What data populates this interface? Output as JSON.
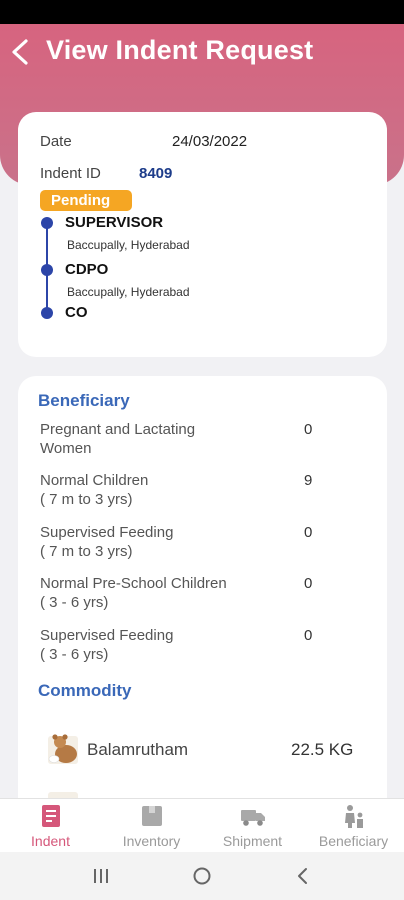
{
  "header": {
    "title": "View Indent Request"
  },
  "summary": {
    "date_label": "Date",
    "date_value": "24/03/2022",
    "indent_label": "Indent ID",
    "indent_value": "8409",
    "status": "Pending"
  },
  "timeline": [
    {
      "title": "SUPERVISOR",
      "location": "Baccupally, Hyderabad"
    },
    {
      "title": "CDPO",
      "location": "Baccupally, Hyderabad"
    },
    {
      "title": "CO",
      "location": ""
    }
  ],
  "beneficiary": {
    "title": "Beneficiary",
    "rows": [
      {
        "line1": "Pregnant and Lactating",
        "line2": "Women",
        "value": "0"
      },
      {
        "line1": "Normal Children",
        "line2": "( 7 m to 3 yrs)",
        "value": "9"
      },
      {
        "line1": "Supervised Feeding",
        "line2": "( 7 m to 3 yrs)",
        "value": "0"
      },
      {
        "line1": "Normal Pre-School Children",
        "line2": "( 3 - 6 yrs)",
        "value": "0"
      },
      {
        "line1": "Supervised Feeding",
        "line2": "( 3 - 6 yrs)",
        "value": "0"
      }
    ]
  },
  "commodity": {
    "title": "Commodity",
    "items": [
      {
        "name": "Balamrutham",
        "quantity": "22.5 KG"
      }
    ]
  },
  "bottom_nav": [
    {
      "label": "Indent",
      "icon": "indent-icon",
      "active": true
    },
    {
      "label": "Inventory",
      "icon": "inventory-icon",
      "active": false
    },
    {
      "label": "Shipment",
      "icon": "shipment-icon",
      "active": false
    },
    {
      "label": "Beneficiary",
      "icon": "beneficiary-icon",
      "active": false
    }
  ],
  "colors": {
    "header": "#d7647f",
    "accent_blue": "#2c45a8",
    "badge": "#f5a623",
    "active_nav": "#d5577a"
  }
}
